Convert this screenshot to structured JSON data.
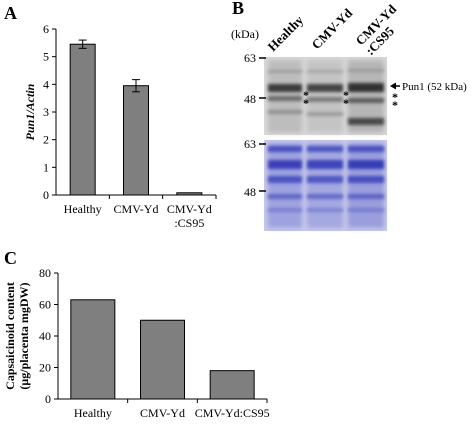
{
  "panels": {
    "a": "A",
    "b": "B",
    "c": "C"
  },
  "chart_data": [
    {
      "panel": "A",
      "type": "bar",
      "categories": [
        "Healthy",
        "CMV-Yd",
        "CMV-Yd\n:CS95"
      ],
      "values": [
        5.45,
        3.95,
        0.08
      ],
      "errors": [
        0.15,
        0.22,
        0.0
      ],
      "ylabel": "Pun1/Actin",
      "ylim": [
        0,
        6
      ],
      "yticks": [
        0,
        1,
        2,
        3,
        4,
        5,
        6
      ],
      "bar_color": "#7f7f7f",
      "grid": false
    },
    {
      "panel": "C",
      "type": "bar",
      "categories": [
        "Healthy",
        "CMV-Yd",
        "CMV-Yd:CS95"
      ],
      "values": [
        63,
        50,
        18
      ],
      "ylabel": "Capsaicinoid content\n(μg/placenta mgDW)",
      "ylim": [
        0,
        80
      ],
      "yticks": [
        0,
        20,
        40,
        60,
        80
      ],
      "bar_color": "#7f7f7f",
      "grid": false
    }
  ],
  "blot": {
    "lanes": [
      "Healthy",
      "CMV-Yd",
      "CMV-Yd\n:CS95"
    ],
    "kda_label": "(kDa)",
    "markers_top": [
      "63",
      "48"
    ],
    "markers_bottom": [
      "63",
      "48"
    ],
    "band_label": "Pun1 (52 kDa)",
    "asterisk": "*"
  }
}
